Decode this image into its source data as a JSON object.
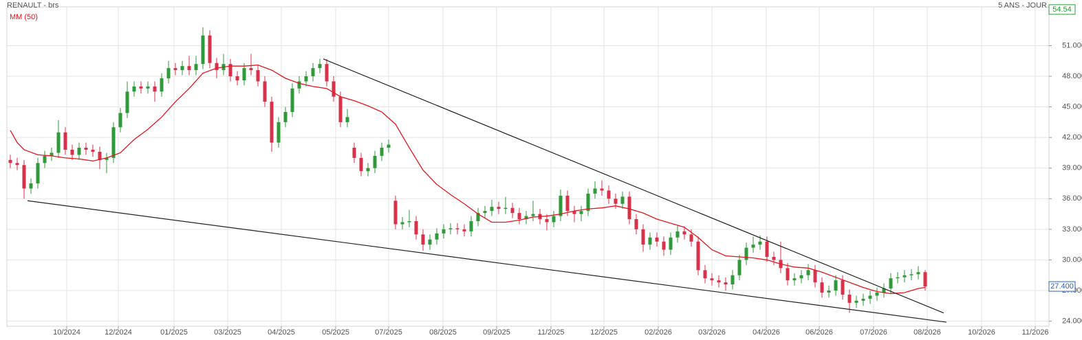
{
  "chart_data": {
    "type": "candlestick",
    "title": "RENAULT - brs",
    "period": "5 ANS - JOUR",
    "up_color": "#2e9a3a",
    "down_color": "#d8324a",
    "xlim": [
      0,
      1515
    ],
    "xticks": [
      {
        "value": 87,
        "label": "10/2024"
      },
      {
        "value": 162,
        "label": "12/2024"
      },
      {
        "value": 243,
        "label": "01/2025"
      },
      {
        "value": 321,
        "label": "03/2025"
      },
      {
        "value": 399,
        "label": "04/2025"
      },
      {
        "value": 478,
        "label": "05/2025"
      },
      {
        "value": 555,
        "label": "07/2025"
      },
      {
        "value": 634,
        "label": "08/2025"
      },
      {
        "value": 712,
        "label": "09/2025"
      },
      {
        "value": 791,
        "label": "11/2025"
      },
      {
        "value": 868,
        "label": "12/2025"
      },
      {
        "value": 947,
        "label": "02/2026"
      },
      {
        "value": 1025,
        "label": "03/2026"
      },
      {
        "value": 1104,
        "label": "04/2026"
      },
      {
        "value": 1181,
        "label": "06/2026"
      },
      {
        "value": 1260,
        "label": "07/2026"
      },
      {
        "value": 1338,
        "label": "08/2026"
      },
      {
        "value": 1417,
        "label": "10/2026"
      },
      {
        "value": 1495,
        "label": "11/2026"
      }
    ],
    "ylim": [
      23.5,
      54.8
    ],
    "yticks": [
      {
        "value": 24,
        "label": "24.000"
      },
      {
        "value": 27,
        "label": "27.000"
      },
      {
        "value": 30,
        "label": "30.000"
      },
      {
        "value": 33,
        "label": "33.000"
      },
      {
        "value": 36,
        "label": "36.000"
      },
      {
        "value": 39,
        "label": "39.000"
      },
      {
        "value": 42,
        "label": "42.000"
      },
      {
        "value": 45,
        "label": "45.000"
      },
      {
        "value": 48,
        "label": "48.000"
      },
      {
        "value": 51,
        "label": "51.000"
      }
    ],
    "grid": true,
    "top_label": {
      "value": 54.54,
      "label": "54.54",
      "color": "#2e9a3a"
    },
    "last_price": {
      "value": 27.4,
      "label": "27.400",
      "color": "#2a62c9"
    },
    "x": [
      5,
      15,
      25,
      35,
      45,
      55,
      65,
      75,
      85,
      95,
      105,
      115,
      125,
      135,
      145,
      155,
      165,
      175,
      185,
      195,
      205,
      215,
      225,
      235,
      245,
      255,
      265,
      275,
      285,
      295,
      305,
      315,
      325,
      335,
      345,
      355,
      365,
      375,
      385,
      395,
      405,
      415,
      425,
      435,
      445,
      455,
      465,
      475,
      485,
      495,
      505,
      515,
      525,
      535,
      545,
      555,
      565,
      575,
      585,
      595,
      605,
      615,
      625,
      635,
      645,
      655,
      665,
      675,
      685,
      695,
      705,
      715,
      725,
      735,
      745,
      755,
      765,
      775,
      785,
      795,
      805,
      815,
      825,
      835,
      845,
      855,
      865,
      875,
      885,
      895,
      905,
      915,
      925,
      935,
      945,
      955,
      965,
      975,
      985,
      995,
      1005,
      1015,
      1025,
      1035,
      1045,
      1055,
      1065,
      1075,
      1085,
      1095,
      1105,
      1115,
      1125,
      1135,
      1145,
      1155,
      1165,
      1175,
      1185,
      1195,
      1205,
      1215,
      1225,
      1235,
      1245,
      1255,
      1265,
      1275,
      1285,
      1295,
      1305,
      1315,
      1325,
      1335
    ],
    "open": [
      39.8,
      39.5,
      39.3,
      37.0,
      37.5,
      39.5,
      40.2,
      40.5,
      42.5,
      40.8,
      40.3,
      41.0,
      40.8,
      40.6,
      39.8,
      40.0,
      43.0,
      44.4,
      46.5,
      47.0,
      46.8,
      47.0,
      46.5,
      47.8,
      48.8,
      48.6,
      49.0,
      48.6,
      49.2,
      52.0,
      49.3,
      48.6,
      49.2,
      48.0,
      47.6,
      48.8,
      48.6,
      47.5,
      45.5,
      41.5,
      43.5,
      44.5,
      46.8,
      47.5,
      48.0,
      48.8,
      49.2,
      47.5,
      46.0,
      43.5,
      41.0,
      40.0,
      38.7,
      39.0,
      40.2,
      41.0,
      35.8,
      33.5,
      33.7,
      33.8,
      32.5,
      31.5,
      32.0,
      32.6,
      33.0,
      33.1,
      33.0,
      32.8,
      33.8,
      34.6,
      34.8,
      35.2,
      35.0,
      35.1,
      34.6,
      34.0,
      34.3,
      34.5,
      34.0,
      33.7,
      34.3,
      36.3,
      34.8,
      34.5,
      34.8,
      36.5,
      37.0,
      36.8,
      36.0,
      35.5,
      36.2,
      34.0,
      33.0,
      31.5,
      32.2,
      31.8,
      31.0,
      32.2,
      32.8,
      32.5,
      31.8,
      29.0,
      28.2,
      28.0,
      27.8,
      27.6,
      28.5,
      30.0,
      31.2,
      31.5,
      31.8,
      30.3,
      30.0,
      29.2,
      28.0,
      28.2,
      28.5,
      29.0,
      27.8,
      26.8,
      27.0,
      28.0,
      26.6,
      25.8,
      26.0,
      26.2,
      26.5,
      26.8,
      27.2,
      28.2,
      28.3,
      28.5,
      28.6,
      28.8
    ],
    "high": [
      40.3,
      40.0,
      39.8,
      38.0,
      40.0,
      40.7,
      41.0,
      43.7,
      43.0,
      41.3,
      41.5,
      41.5,
      41.3,
      41.1,
      40.5,
      43.5,
      44.9,
      47.5,
      47.5,
      47.5,
      47.5,
      47.5,
      48.3,
      49.5,
      49.3,
      49.5,
      50.0,
      50.0,
      52.8,
      52.5,
      49.8,
      50.2,
      49.7,
      48.5,
      49.3,
      50.2,
      49.1,
      48.0,
      46.0,
      44.0,
      45.0,
      47.3,
      48.0,
      48.5,
      49.3,
      49.7,
      49.7,
      48.0,
      46.5,
      44.8,
      41.5,
      40.5,
      39.5,
      40.7,
      41.5,
      41.8,
      36.3,
      34.2,
      34.9,
      34.3,
      33.0,
      32.5,
      33.1,
      33.5,
      33.6,
      33.6,
      33.5,
      34.3,
      35.1,
      35.3,
      35.9,
      35.7,
      36.2,
      35.6,
      35.1,
      34.8,
      35.8,
      35.0,
      34.5,
      34.8,
      36.9,
      36.8,
      35.3,
      35.3,
      37.0,
      37.7,
      37.8,
      37.3,
      36.5,
      36.7,
      36.7,
      34.5,
      33.5,
      32.7,
      32.7,
      32.3,
      32.7,
      33.4,
      33.3,
      33.0,
      32.3,
      29.5,
      28.7,
      28.5,
      28.3,
      29.0,
      30.5,
      31.7,
      32.3,
      32.4,
      32.3,
      30.8,
      31.8,
      29.7,
      28.7,
      29.0,
      29.6,
      29.5,
      28.3,
      27.5,
      28.5,
      28.5,
      27.1,
      26.5,
      26.7,
      27.0,
      27.3,
      27.7,
      28.7,
      28.8,
      29.0,
      29.1,
      29.4,
      29.0
    ],
    "low": [
      39.0,
      38.8,
      36.0,
      36.5,
      37.0,
      39.0,
      39.7,
      40.0,
      40.3,
      39.8,
      39.8,
      40.3,
      40.1,
      38.9,
      38.5,
      39.5,
      42.5,
      43.9,
      46.0,
      46.3,
      46.3,
      45.5,
      46.0,
      47.3,
      48.1,
      48.1,
      48.1,
      48.1,
      48.7,
      48.8,
      47.8,
      48.1,
      47.5,
      47.1,
      47.1,
      48.1,
      47.0,
      45.0,
      40.6,
      41.0,
      43.0,
      44.0,
      46.3,
      47.0,
      47.5,
      48.3,
      47.0,
      45.5,
      43.0,
      43.0,
      39.5,
      38.2,
      38.2,
      38.5,
      39.7,
      40.5,
      33.0,
      33.0,
      33.2,
      32.0,
      30.9,
      31.0,
      31.5,
      32.1,
      32.5,
      32.5,
      32.3,
      32.3,
      33.3,
      34.1,
      34.3,
      34.5,
      34.5,
      34.1,
      33.5,
      33.5,
      33.8,
      33.5,
      32.9,
      33.2,
      33.8,
      34.3,
      33.7,
      33.8,
      34.3,
      36.0,
      36.3,
      35.5,
      35.0,
      35.0,
      33.5,
      32.5,
      30.8,
      31.0,
      31.3,
      30.4,
      30.5,
      31.7,
      32.0,
      31.3,
      28.5,
      27.7,
      27.5,
      27.3,
      27.0,
      27.1,
      28.0,
      29.5,
      30.7,
      31.0,
      29.8,
      29.5,
      28.7,
      27.5,
      27.5,
      27.7,
      28.0,
      27.3,
      26.3,
      26.3,
      26.5,
      26.1,
      24.8,
      25.3,
      25.5,
      25.7,
      26.0,
      26.3,
      26.7,
      27.7,
      27.8,
      28.0,
      28.1,
      27.0
    ],
    "close": [
      39.5,
      39.3,
      37.0,
      37.5,
      39.5,
      40.2,
      40.5,
      42.5,
      40.8,
      40.3,
      41.0,
      40.8,
      40.6,
      39.8,
      40.0,
      43.0,
      44.4,
      46.5,
      47.0,
      46.8,
      47.0,
      46.5,
      47.8,
      48.8,
      48.6,
      49.0,
      48.6,
      49.2,
      52.0,
      49.3,
      48.6,
      49.2,
      48.0,
      47.6,
      48.8,
      48.6,
      47.5,
      45.5,
      41.5,
      43.5,
      44.5,
      46.8,
      47.5,
      48.0,
      48.8,
      49.2,
      47.5,
      46.0,
      43.5,
      44.0,
      40.0,
      38.7,
      39.0,
      40.2,
      41.0,
      41.3,
      33.5,
      33.7,
      33.8,
      32.5,
      31.5,
      32.0,
      32.6,
      33.0,
      33.1,
      33.0,
      32.8,
      33.8,
      34.6,
      34.8,
      35.2,
      35.0,
      35.1,
      34.6,
      34.0,
      34.3,
      34.5,
      34.0,
      33.7,
      34.3,
      36.3,
      34.8,
      34.5,
      34.8,
      36.5,
      37.0,
      36.8,
      36.0,
      35.5,
      36.2,
      34.0,
      33.0,
      31.5,
      32.2,
      31.8,
      31.0,
      32.2,
      32.8,
      32.5,
      31.8,
      29.0,
      28.2,
      28.0,
      27.8,
      27.6,
      28.5,
      30.0,
      31.2,
      31.5,
      31.8,
      30.3,
      30.0,
      29.2,
      28.0,
      28.2,
      28.5,
      29.0,
      27.8,
      26.8,
      27.0,
      28.0,
      26.6,
      25.8,
      26.0,
      26.2,
      26.5,
      26.8,
      27.2,
      28.2,
      28.3,
      28.5,
      28.6,
      28.8,
      27.4
    ],
    "moving_average": {
      "name": "MM (50)",
      "color": "#e8141a",
      "x": [
        5,
        15,
        25,
        45,
        65,
        85,
        105,
        125,
        145,
        165,
        185,
        205,
        225,
        245,
        265,
        285,
        305,
        325,
        345,
        365,
        385,
        405,
        425,
        445,
        465,
        485,
        505,
        525,
        545,
        565,
        585,
        605,
        625,
        645,
        665,
        685,
        705,
        725,
        745,
        765,
        785,
        805,
        825,
        845,
        865,
        885,
        905,
        925,
        945,
        965,
        985,
        1005,
        1025,
        1045,
        1065,
        1085,
        1105,
        1125,
        1145,
        1165,
        1185,
        1205,
        1225,
        1245,
        1265,
        1285,
        1305,
        1325,
        1335
      ],
      "values": [
        42.7,
        41.5,
        40.8,
        40.3,
        40.2,
        40.0,
        39.9,
        39.7,
        40.0,
        40.5,
        41.8,
        42.8,
        44.0,
        45.5,
        46.8,
        48.3,
        48.8,
        49.0,
        49.0,
        49.1,
        48.6,
        47.8,
        47.3,
        47.0,
        46.8,
        46.0,
        45.6,
        45.1,
        44.5,
        43.3,
        41.0,
        38.8,
        37.4,
        36.4,
        35.5,
        34.5,
        33.7,
        33.7,
        33.9,
        34.2,
        34.3,
        34.5,
        34.8,
        35.0,
        35.1,
        35.3,
        35.0,
        34.6,
        34.0,
        33.6,
        33.2,
        32.2,
        31.0,
        30.4,
        30.3,
        30.2,
        30.0,
        29.6,
        29.3,
        29.2,
        28.8,
        28.3,
        27.8,
        27.3,
        26.9,
        26.7,
        26.8,
        27.2,
        27.3
      ]
    },
    "trendlines": [
      {
        "color": "#222222",
        "x": [
          460,
          1362
        ],
        "values": [
          49.7,
          24.8
        ]
      },
      {
        "color": "#222222",
        "x": [
          30,
          1366
        ],
        "values": [
          35.8,
          23.9
        ]
      }
    ]
  }
}
